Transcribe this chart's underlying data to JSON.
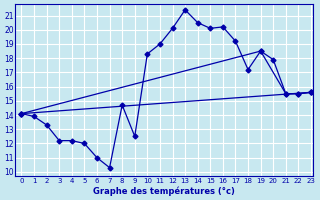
{
  "title": "Graphe des températures (°c)",
  "xlabel": "Graphe des températures (°c)",
  "ylim": [
    10,
    21.5
  ],
  "xlim": [
    0,
    23
  ],
  "yticks": [
    10,
    11,
    12,
    13,
    14,
    15,
    16,
    17,
    18,
    19,
    20,
    21
  ],
  "xticks": [
    0,
    1,
    2,
    3,
    4,
    5,
    6,
    7,
    8,
    9,
    10,
    11,
    12,
    13,
    14,
    15,
    16,
    17,
    18,
    19,
    20,
    21,
    22,
    23
  ],
  "background_color": "#c8e8f0",
  "grid_color": "#ffffff",
  "line_color": "#0000aa",
  "line1_x": [
    0,
    1,
    2,
    3,
    4,
    5,
    6,
    7,
    8,
    9,
    10,
    11,
    12,
    13,
    14,
    15,
    16,
    17,
    18,
    19,
    20,
    21,
    22,
    23
  ],
  "line1_y": [
    14.1,
    13.9,
    13.3,
    12.2,
    12.2,
    12.0,
    11.0,
    10.3,
    14.7,
    12.5,
    18.3,
    19.0,
    20.1,
    21.4,
    20.5,
    20.1,
    20.2,
    19.2,
    17.2,
    18.5,
    17.9,
    15.5,
    15.5,
    15.6
  ],
  "line2_x": [
    0,
    23
  ],
  "line2_y": [
    14.1,
    15.6
  ],
  "line3_x": [
    0,
    19,
    21,
    22,
    23
  ],
  "line3_y": [
    14.1,
    18.5,
    15.5,
    15.5,
    15.6
  ]
}
